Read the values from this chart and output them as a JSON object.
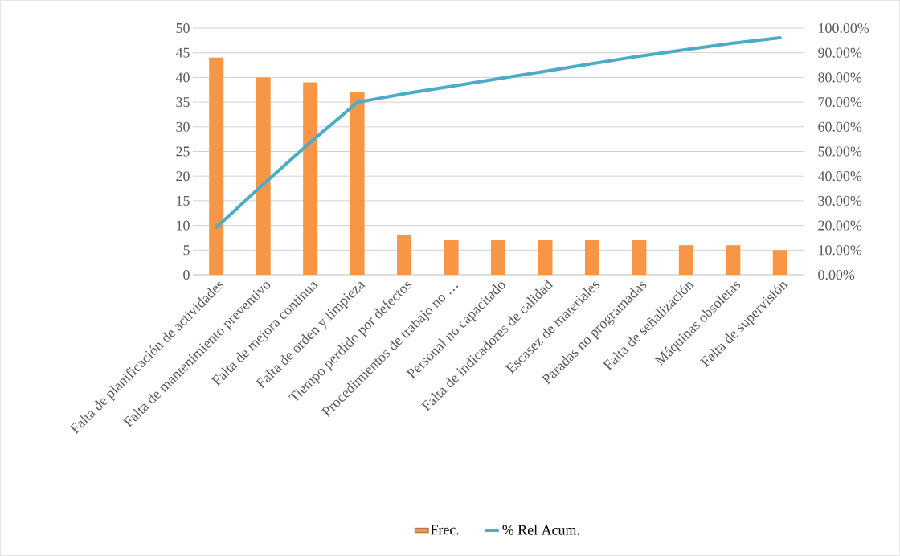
{
  "chart_data": {
    "type": "bar",
    "categories": [
      "Falta de planificación de actividades",
      "Falta de mantenimiento preventivo",
      "Falta de mejora continua",
      "Falta de orden y limpieza",
      "Tiempo perdido por defectos",
      "Procedimientos de trabajo no …",
      "Personal no capacitado",
      "Falta de indicadores de calidad",
      "Escasez de materiales",
      "Paradas no programadas",
      "Falta de señalización",
      "Máquinas obsoletas",
      "Falta de supervisión"
    ],
    "series": [
      {
        "name": "Frec.",
        "color": "#f79646",
        "values": [
          44,
          40,
          39,
          37,
          8,
          7,
          7,
          7,
          7,
          7,
          6,
          6,
          5
        ]
      },
      {
        "name": "% Rel Acum.",
        "type": "line",
        "axis": "y2",
        "color": "#4bacc6",
        "values": [
          19.2,
          36.7,
          53.7,
          69.9,
          73.4,
          76.4,
          79.5,
          82.5,
          85.6,
          88.6,
          91.3,
          93.9,
          96.1
        ]
      }
    ],
    "ylim": [
      0,
      50
    ],
    "yticks": [
      0,
      5,
      10,
      15,
      20,
      25,
      30,
      35,
      40,
      45,
      50
    ],
    "y2lim": [
      0,
      100
    ],
    "y2ticks": [
      {
        "value": 0,
        "label": "0.00%"
      },
      {
        "value": 10,
        "label": "10.00%"
      },
      {
        "value": 20,
        "label": "20.00%"
      },
      {
        "value": 30,
        "label": "30.00%"
      },
      {
        "value": 40,
        "label": "40.00%"
      },
      {
        "value": 50,
        "label": "50.00%"
      },
      {
        "value": 60,
        "label": "60.00%"
      },
      {
        "value": 70,
        "label": "70.00%"
      },
      {
        "value": 80,
        "label": "80.00%"
      },
      {
        "value": 90,
        "label": "90.00%"
      },
      {
        "value": 100,
        "label": "100.00%"
      }
    ],
    "grid": "y",
    "legend": "bottom",
    "marker": "none"
  }
}
